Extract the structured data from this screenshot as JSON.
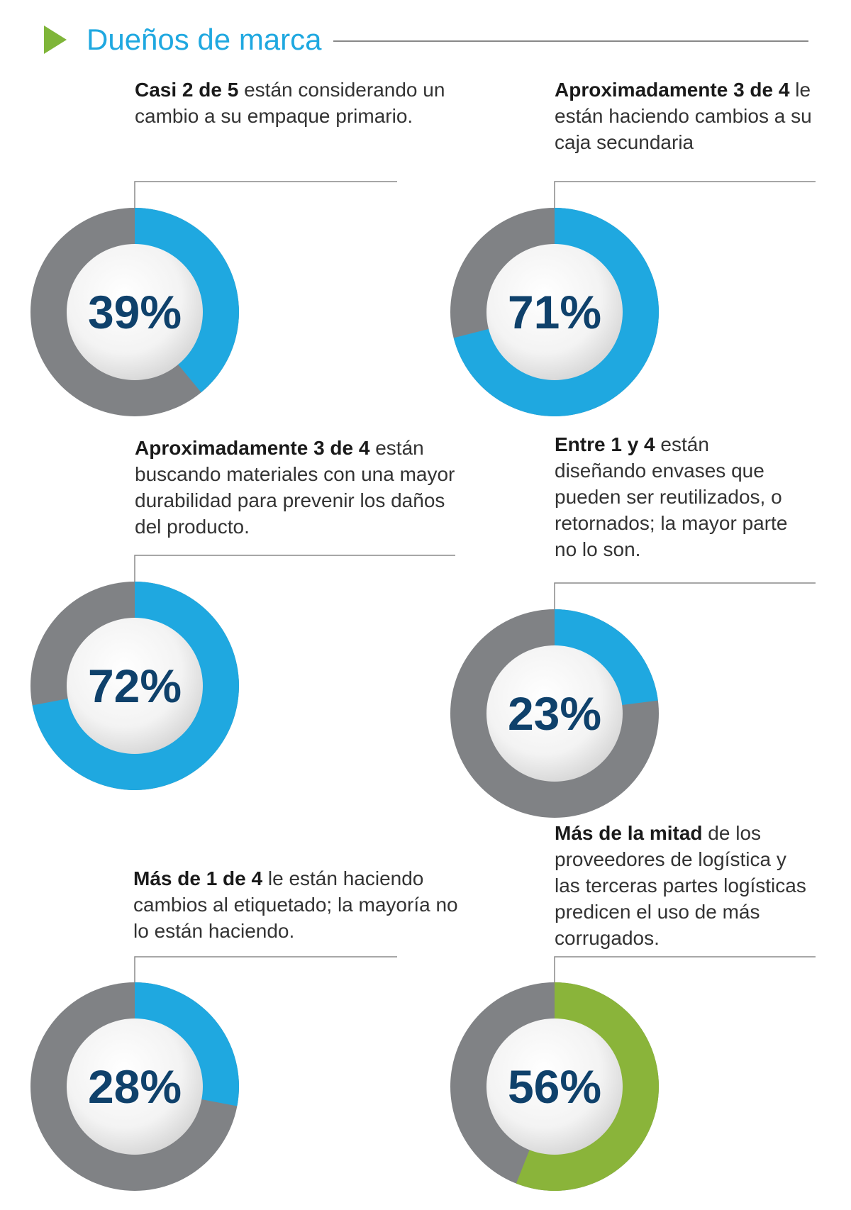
{
  "page": {
    "title": "Dueños de marca",
    "colors": {
      "accent": "#1fa8e0",
      "rest": "#808285",
      "highlight": "#8ab43a",
      "value_text": "#0f416b",
      "triangle": "#7fb539"
    }
  },
  "chart_data": [
    {
      "type": "pie",
      "value": 39,
      "label": "39%",
      "fill": "#1fa8e0",
      "caption_bold": "Casi 2 de 5",
      "caption_rest": " están considerando un cambio a su empaque primario."
    },
    {
      "type": "pie",
      "value": 71,
      "label": "71%",
      "fill": "#1fa8e0",
      "caption_bold": "Aproximadamente 3 de 4",
      "caption_rest": " le están haciendo cambios a su caja secundaria"
    },
    {
      "type": "pie",
      "value": 72,
      "label": "72%",
      "fill": "#1fa8e0",
      "caption_bold": "Aproximadamente 3 de 4",
      "caption_rest": " están buscando materiales con una mayor durabilidad para prevenir los daños del producto."
    },
    {
      "type": "pie",
      "value": 23,
      "label": "23%",
      "fill": "#1fa8e0",
      "caption_bold": "Entre 1 y 4",
      "caption_rest": " están diseñando envases que pueden ser reutilizados, o retornados; la mayor parte no lo son."
    },
    {
      "type": "pie",
      "value": 28,
      "label": "28%",
      "fill": "#1fa8e0",
      "caption_bold": "Más de 1 de 4",
      "caption_rest": " le están haciendo cambios al etiquetado; la mayoría no lo están haciendo."
    },
    {
      "type": "pie",
      "value": 56,
      "label": "56%",
      "fill": "#8ab43a",
      "caption_bold": "Más de la mitad",
      "caption_rest": " de los proveedores de logística y las terceras partes logísticas predicen el uso de más corrugados."
    }
  ]
}
